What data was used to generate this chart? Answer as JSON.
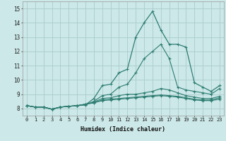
{
  "xlabel": "Humidex (Indice chaleur)",
  "bg_color": "#cce8e8",
  "grid_color": "#aacccc",
  "line_color": "#2e7d72",
  "xlim": [
    -0.5,
    23.5
  ],
  "ylim": [
    7.5,
    15.5
  ],
  "xtick_labels": [
    "0",
    "1",
    "2",
    "3",
    "4",
    "5",
    "6",
    "7",
    "8",
    "9",
    "10",
    "11",
    "12",
    "13",
    "14",
    "15",
    "16",
    "17",
    "18",
    "19",
    "20",
    "21",
    "22",
    "23"
  ],
  "ytick_labels": [
    "8",
    "9",
    "10",
    "11",
    "12",
    "13",
    "14",
    "15"
  ],
  "ytick_vals": [
    8,
    9,
    10,
    11,
    12,
    13,
    14,
    15
  ],
  "lines": [
    [
      8.2,
      8.1,
      8.1,
      7.95,
      8.1,
      8.15,
      8.2,
      8.25,
      8.7,
      9.6,
      9.7,
      10.5,
      10.75,
      13.0,
      14.0,
      14.8,
      13.5,
      12.5,
      12.5,
      12.3,
      9.8,
      9.5,
      9.2,
      9.6
    ],
    [
      8.2,
      8.1,
      8.1,
      7.95,
      8.1,
      8.15,
      8.2,
      8.25,
      8.5,
      8.9,
      9.0,
      9.5,
      9.7,
      10.5,
      11.5,
      12.0,
      12.5,
      11.5,
      9.5,
      9.3,
      9.2,
      9.1,
      9.0,
      9.4
    ],
    [
      8.2,
      8.1,
      8.1,
      7.95,
      8.1,
      8.15,
      8.2,
      8.3,
      8.45,
      8.7,
      8.75,
      8.9,
      9.0,
      9.0,
      9.1,
      9.2,
      9.4,
      9.3,
      9.1,
      8.9,
      8.8,
      8.7,
      8.7,
      8.85
    ],
    [
      8.2,
      8.1,
      8.1,
      7.95,
      8.1,
      8.15,
      8.2,
      8.3,
      8.4,
      8.6,
      8.65,
      8.7,
      8.75,
      8.8,
      8.85,
      8.9,
      8.95,
      8.9,
      8.85,
      8.75,
      8.65,
      8.6,
      8.6,
      8.75
    ],
    [
      8.2,
      8.1,
      8.1,
      7.95,
      8.1,
      8.15,
      8.2,
      8.3,
      8.4,
      8.55,
      8.6,
      8.65,
      8.7,
      8.75,
      8.8,
      8.85,
      8.9,
      8.85,
      8.8,
      8.7,
      8.6,
      8.55,
      8.55,
      8.65
    ]
  ]
}
